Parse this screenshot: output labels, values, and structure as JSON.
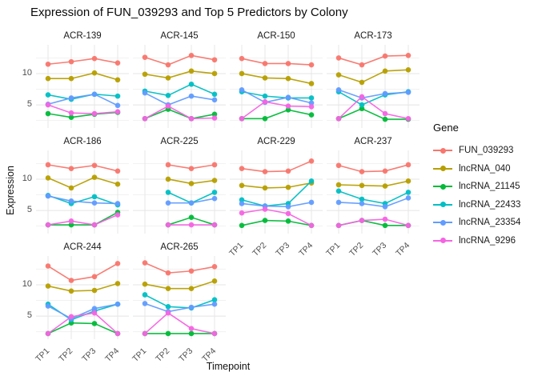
{
  "title": "Expression of FUN_039293 and Top 5 Predictors by Colony",
  "y_axis": {
    "label": "Expression",
    "tick_labels": [
      "5",
      "10"
    ]
  },
  "x_axis": {
    "label": "Timepoint",
    "tick_labels": [
      "TP1",
      "TP2",
      "TP3",
      "TP4"
    ]
  },
  "legend": {
    "title": "Gene"
  },
  "genes": [
    {
      "name": "FUN_039293",
      "color": "#F8766D"
    },
    {
      "name": "lncRNA_040",
      "color": "#B79F00"
    },
    {
      "name": "lncRNA_21145",
      "color": "#00BA38"
    },
    {
      "name": "lncRNA_22433",
      "color": "#00BFC4"
    },
    {
      "name": "lncRNA_23354",
      "color": "#619CFF"
    },
    {
      "name": "lncRNA_9296",
      "color": "#F564E3"
    }
  ],
  "chart_data": {
    "type": "line",
    "x": [
      "TP1",
      "TP2",
      "TP3",
      "TP4"
    ],
    "xlabel": "Timepoint",
    "ylabel": "Expression",
    "yticks": [
      5,
      10
    ],
    "ylim": [
      1.3,
      14.6
    ],
    "grid": true,
    "legend_position": "right",
    "facets": [
      {
        "colony": "ACR-139",
        "series": [
          {
            "name": "FUN_039293",
            "values": [
              11.5,
              11.9,
              12.4,
              11.7
            ]
          },
          {
            "name": "lncRNA_040",
            "values": [
              9.2,
              9.2,
              10.1,
              9.0
            ]
          },
          {
            "name": "lncRNA_21145",
            "values": [
              3.6,
              3.0,
              3.5,
              3.8
            ]
          },
          {
            "name": "lncRNA_22433",
            "values": [
              6.6,
              5.9,
              6.7,
              6.4
            ]
          },
          {
            "name": "lncRNA_23354",
            "values": [
              5.1,
              6.1,
              6.7,
              4.9
            ]
          },
          {
            "name": "lncRNA_9296",
            "values": [
              5.0,
              3.7,
              3.6,
              3.9
            ]
          }
        ]
      },
      {
        "colony": "ACR-145",
        "series": [
          {
            "name": "FUN_039293",
            "values": [
              12.6,
              11.4,
              12.9,
              12.2
            ]
          },
          {
            "name": "lncRNA_040",
            "values": [
              9.9,
              9.3,
              10.4,
              10.0
            ]
          },
          {
            "name": "lncRNA_21145",
            "values": [
              2.8,
              4.3,
              2.8,
              3.5
            ]
          },
          {
            "name": "lncRNA_22433",
            "values": [
              7.2,
              6.5,
              8.3,
              6.7
            ]
          },
          {
            "name": "lncRNA_23354",
            "values": [
              6.9,
              5.0,
              6.4,
              5.8
            ]
          },
          {
            "name": "lncRNA_9296",
            "values": [
              2.8,
              4.8,
              2.8,
              2.9
            ]
          }
        ]
      },
      {
        "colony": "ACR-150",
        "series": [
          {
            "name": "FUN_039293",
            "values": [
              12.4,
              11.6,
              11.6,
              11.4
            ]
          },
          {
            "name": "lncRNA_040",
            "values": [
              10.0,
              9.3,
              9.2,
              8.4
            ]
          },
          {
            "name": "lncRNA_21145",
            "values": [
              2.8,
              2.8,
              4.2,
              3.4
            ]
          },
          {
            "name": "lncRNA_22433",
            "values": [
              7.1,
              6.4,
              6.1,
              6.1
            ]
          },
          {
            "name": "lncRNA_23354",
            "values": [
              7.4,
              5.4,
              6.2,
              5.3
            ]
          },
          {
            "name": "lncRNA_9296",
            "values": [
              2.8,
              5.5,
              4.8,
              4.7
            ]
          }
        ]
      },
      {
        "colony": "ACR-173",
        "series": [
          {
            "name": "FUN_039293",
            "values": [
              12.5,
              11.4,
              12.8,
              12.9
            ]
          },
          {
            "name": "lncRNA_040",
            "values": [
              9.8,
              8.6,
              10.4,
              10.6
            ]
          },
          {
            "name": "lncRNA_21145",
            "values": [
              2.8,
              4.4,
              2.7,
              2.7
            ]
          },
          {
            "name": "lncRNA_22433",
            "values": [
              7.1,
              5.0,
              6.6,
              7.1
            ]
          },
          {
            "name": "lncRNA_23354",
            "values": [
              7.4,
              6.1,
              6.8,
              7.0
            ]
          },
          {
            "name": "lncRNA_9296",
            "values": [
              2.8,
              6.3,
              3.6,
              2.8
            ]
          }
        ]
      },
      {
        "colony": "ACR-186",
        "series": [
          {
            "name": "FUN_039293",
            "values": [
              12.3,
              11.7,
              12.2,
              11.3
            ]
          },
          {
            "name": "lncRNA_040",
            "values": [
              10.2,
              8.6,
              10.3,
              9.2
            ]
          },
          {
            "name": "lncRNA_21145",
            "values": [
              2.7,
              2.7,
              2.7,
              4.7
            ]
          },
          {
            "name": "lncRNA_22433",
            "values": [
              7.4,
              6.1,
              7.2,
              5.9
            ]
          },
          {
            "name": "lncRNA_23354",
            "values": [
              7.3,
              6.5,
              6.2,
              6.1
            ]
          },
          {
            "name": "lncRNA_9296",
            "values": [
              2.7,
              3.3,
              2.7,
              4.3
            ]
          }
        ]
      },
      {
        "colony": "ACR-225",
        "series": [
          {
            "name": "FUN_039293",
            "values": [
              null,
              12.3,
              11.7,
              12.3
            ]
          },
          {
            "name": "lncRNA_040",
            "values": [
              null,
              10.0,
              9.3,
              9.8
            ]
          },
          {
            "name": "lncRNA_21145",
            "values": [
              null,
              2.7,
              3.9,
              2.7
            ]
          },
          {
            "name": "lncRNA_22433",
            "values": [
              null,
              7.9,
              6.2,
              7.9
            ]
          },
          {
            "name": "lncRNA_23354",
            "values": [
              null,
              6.2,
              6.2,
              6.9
            ]
          },
          {
            "name": "lncRNA_9296",
            "values": [
              null,
              2.7,
              2.7,
              2.7
            ]
          }
        ]
      },
      {
        "colony": "ACR-229",
        "series": [
          {
            "name": "FUN_039293",
            "values": [
              11.7,
              11.2,
              11.3,
              12.9
            ]
          },
          {
            "name": "lncRNA_040",
            "values": [
              9.0,
              8.6,
              8.7,
              9.4
            ]
          },
          {
            "name": "lncRNA_21145",
            "values": [
              2.6,
              3.4,
              3.3,
              2.6
            ]
          },
          {
            "name": "lncRNA_22433",
            "values": [
              6.7,
              5.7,
              6.1,
              9.7
            ]
          },
          {
            "name": "lncRNA_23354",
            "values": [
              6.1,
              5.7,
              5.6,
              6.3
            ]
          },
          {
            "name": "lncRNA_9296",
            "values": [
              4.6,
              5.2,
              4.5,
              2.6
            ]
          }
        ]
      },
      {
        "colony": "ACR-237",
        "series": [
          {
            "name": "FUN_039293",
            "values": [
              12.2,
              11.2,
              11.3,
              12.3
            ]
          },
          {
            "name": "lncRNA_040",
            "values": [
              9.1,
              9.0,
              8.9,
              9.7
            ]
          },
          {
            "name": "lncRNA_21145",
            "values": [
              2.6,
              3.4,
              2.6,
              2.6
            ]
          },
          {
            "name": "lncRNA_22433",
            "values": [
              8.1,
              6.8,
              6.1,
              7.9
            ]
          },
          {
            "name": "lncRNA_23354",
            "values": [
              6.3,
              6.1,
              5.6,
              7.0
            ]
          },
          {
            "name": "lncRNA_9296",
            "values": [
              2.6,
              3.4,
              3.6,
              2.6
            ]
          }
        ]
      },
      {
        "colony": "ACR-244",
        "series": [
          {
            "name": "FUN_039293",
            "values": [
              13.0,
              10.7,
              11.3,
              13.4
            ]
          },
          {
            "name": "lncRNA_040",
            "values": [
              9.8,
              9.0,
              9.1,
              10.2
            ]
          },
          {
            "name": "lncRNA_21145",
            "values": [
              2.2,
              3.9,
              3.8,
              2.2
            ]
          },
          {
            "name": "lncRNA_22433",
            "values": [
              6.9,
              4.4,
              5.8,
              6.9
            ]
          },
          {
            "name": "lncRNA_23354",
            "values": [
              6.6,
              4.6,
              6.2,
              6.9
            ]
          },
          {
            "name": "lncRNA_9296",
            "values": [
              2.2,
              4.9,
              5.5,
              2.2
            ]
          }
        ]
      },
      {
        "colony": "ACR-265",
        "series": [
          {
            "name": "FUN_039293",
            "values": [
              13.5,
              11.9,
              12.2,
              12.9
            ]
          },
          {
            "name": "lncRNA_040",
            "values": [
              10.1,
              9.4,
              9.4,
              10.6
            ]
          },
          {
            "name": "lncRNA_21145",
            "values": [
              2.2,
              2.2,
              2.2,
              2.2
            ]
          },
          {
            "name": "lncRNA_22433",
            "values": [
              8.4,
              6.5,
              6.3,
              7.6
            ]
          },
          {
            "name": "lncRNA_23354",
            "values": [
              7.0,
              5.7,
              6.4,
              6.9
            ]
          },
          {
            "name": "lncRNA_9296",
            "values": [
              2.2,
              5.5,
              3.0,
              2.2
            ]
          }
        ]
      }
    ]
  }
}
